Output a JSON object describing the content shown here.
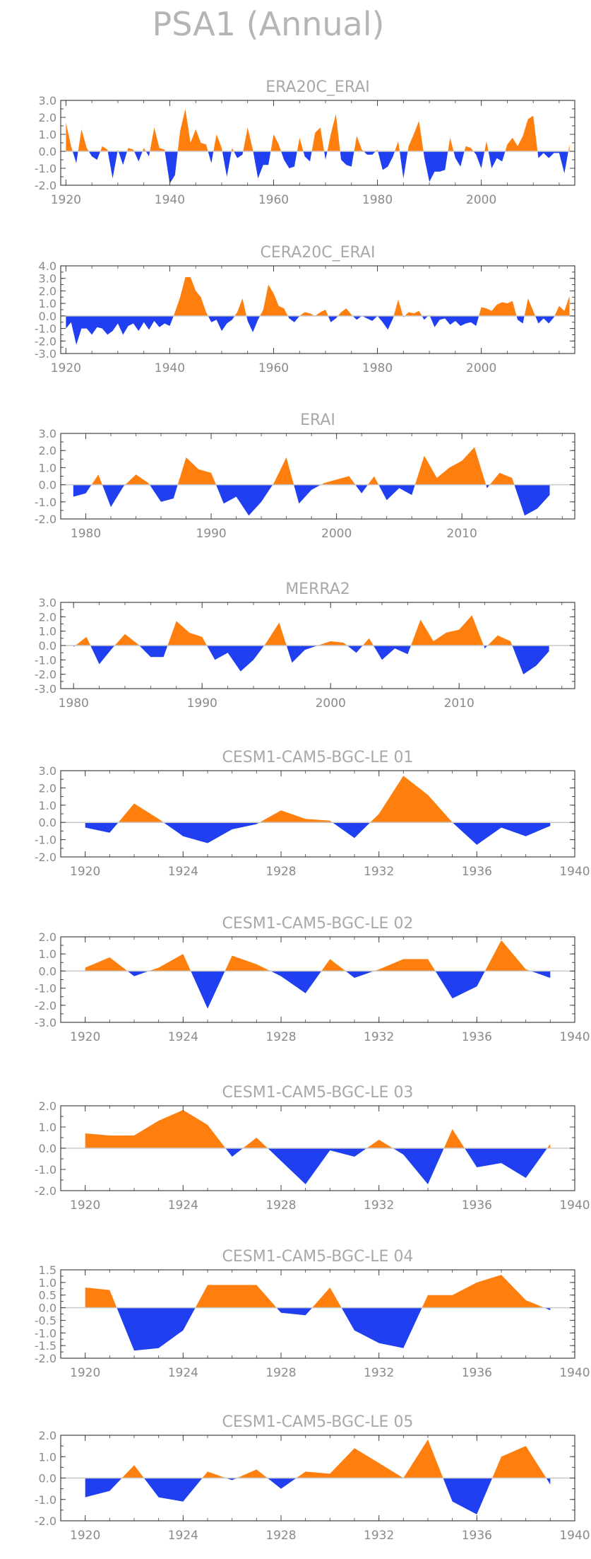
{
  "page_title": "PSA1 (Annual)",
  "colors": {
    "positive": "#ff7f0e",
    "negative": "#1f3ff0",
    "frame": "#444444",
    "zero_line": "#c8c8c8",
    "text": "#999999"
  },
  "chart_data": [
    {
      "type": "area",
      "title": "ERA20C_ERAI",
      "ylim": [
        -2.0,
        3.0
      ],
      "yticks": [
        "3.0",
        "2.0",
        "1.0",
        "0.0",
        "-1.0",
        "-2.0"
      ],
      "xlim": [
        1919,
        2018
      ],
      "xticks": [
        "1920",
        "1940",
        "1960",
        "1980",
        "2000"
      ],
      "x": [
        1920,
        1921,
        1922,
        1923,
        1924,
        1925,
        1926,
        1927,
        1928,
        1929,
        1930,
        1931,
        1932,
        1933,
        1934,
        1935,
        1936,
        1937,
        1938,
        1939,
        1940,
        1941,
        1942,
        1943,
        1944,
        1945,
        1946,
        1947,
        1948,
        1949,
        1950,
        1951,
        1952,
        1953,
        1954,
        1955,
        1956,
        1957,
        1958,
        1959,
        1960,
        1961,
        1962,
        1963,
        1964,
        1965,
        1966,
        1967,
        1968,
        1969,
        1970,
        1971,
        1972,
        1973,
        1974,
        1975,
        1976,
        1977,
        1978,
        1979,
        1980,
        1981,
        1982,
        1983,
        1984,
        1985,
        1986,
        1987,
        1988,
        1989,
        1990,
        1991,
        1992,
        1993,
        1994,
        1995,
        1996,
        1997,
        1998,
        1999,
        2000,
        2001,
        2002,
        2003,
        2004,
        2005,
        2006,
        2007,
        2008,
        2009,
        2010,
        2011,
        2012,
        2013,
        2014,
        2015,
        2016,
        2017
      ],
      "y": [
        1.7,
        0.3,
        -0.7,
        1.3,
        0.2,
        -0.3,
        -0.5,
        0.3,
        0.1,
        -1.6,
        0.1,
        -0.8,
        0.2,
        0.1,
        -0.6,
        0.2,
        -0.3,
        1.4,
        0.2,
        0.1,
        -1.9,
        -1.4,
        1.2,
        2.5,
        0.5,
        1.3,
        0.5,
        0.4,
        -0.7,
        1.0,
        0.2,
        -1.5,
        0.2,
        -0.4,
        -0.2,
        1.4,
        0.1,
        -1.6,
        -0.8,
        -0.8,
        1.0,
        0.4,
        -0.5,
        -1.0,
        -0.9,
        0.8,
        -0.3,
        -0.6,
        1.1,
        1.4,
        -0.5,
        1.0,
        2.2,
        -0.5,
        -0.8,
        -0.9,
        0.9,
        0.1,
        -0.2,
        -0.2,
        0.1,
        -1.1,
        -0.9,
        -0.3,
        0.6,
        -1.6,
        0.3,
        1.0,
        1.8,
        -0.3,
        -1.8,
        -1.2,
        -1.2,
        -1.1,
        0.8,
        -0.4,
        -0.9,
        0.3,
        0.2,
        -0.2,
        -1.0,
        0.6,
        -1.0,
        -0.4,
        -0.6,
        0.4,
        0.8,
        0.3,
        0.9,
        1.9,
        2.1,
        -0.4,
        -0.1,
        -0.4,
        -0.1,
        -0.1,
        -1.3,
        0.4
      ]
    },
    {
      "type": "area",
      "title": "CERA20C_ERAI",
      "ylim": [
        -3.0,
        4.0
      ],
      "yticks": [
        "4.0",
        "3.0",
        "2.0",
        "1.0",
        "0.0",
        "-1.0",
        "-2.0",
        "-3.0"
      ],
      "xlim": [
        1919,
        2018
      ],
      "xticks": [
        "1920",
        "1940",
        "1960",
        "1980",
        "2000"
      ],
      "x": [
        1920,
        1921,
        1922,
        1923,
        1924,
        1925,
        1926,
        1927,
        1928,
        1929,
        1930,
        1931,
        1932,
        1933,
        1934,
        1935,
        1936,
        1937,
        1938,
        1939,
        1940,
        1941,
        1942,
        1943,
        1944,
        1945,
        1946,
        1947,
        1948,
        1949,
        1950,
        1951,
        1952,
        1953,
        1954,
        1955,
        1956,
        1957,
        1958,
        1959,
        1960,
        1961,
        1962,
        1963,
        1964,
        1965,
        1966,
        1967,
        1968,
        1969,
        1970,
        1971,
        1972,
        1973,
        1974,
        1975,
        1976,
        1977,
        1978,
        1979,
        1980,
        1981,
        1982,
        1983,
        1984,
        1985,
        1986,
        1987,
        1988,
        1989,
        1990,
        1991,
        1992,
        1993,
        1994,
        1995,
        1996,
        1997,
        1998,
        1999,
        2000,
        2001,
        2002,
        2003,
        2004,
        2005,
        2006,
        2007,
        2008,
        2009,
        2010,
        2011,
        2012,
        2013,
        2014,
        2015,
        2016,
        2017
      ],
      "y": [
        -1.0,
        -0.5,
        -2.3,
        -1.0,
        -1.0,
        -1.5,
        -0.9,
        -1.0,
        -1.5,
        -1.2,
        -0.6,
        -1.5,
        -0.8,
        -0.6,
        -1.2,
        -0.5,
        -1.1,
        -0.4,
        -0.9,
        -0.6,
        -0.8,
        0.3,
        1.5,
        3.1,
        3.1,
        2.0,
        1.5,
        0.3,
        -0.5,
        -0.3,
        -1.2,
        -0.6,
        -0.3,
        0.3,
        1.4,
        -0.4,
        -1.3,
        -0.3,
        0.5,
        2.5,
        1.8,
        0.8,
        0.6,
        -0.2,
        -0.5,
        0.0,
        0.3,
        0.2,
        0.0,
        0.3,
        0.5,
        -0.5,
        -0.2,
        0.3,
        0.6,
        0.1,
        -0.3,
        0.0,
        -0.2,
        -0.4,
        0.0,
        -0.5,
        -1.1,
        -0.2,
        1.3,
        -0.1,
        0.3,
        0.2,
        0.4,
        -0.3,
        0.1,
        -0.9,
        -0.3,
        -0.2,
        -0.7,
        -0.4,
        -0.8,
        -0.6,
        -0.5,
        -0.8,
        0.7,
        0.6,
        0.4,
        0.9,
        1.1,
        1.0,
        1.2,
        -0.3,
        -0.6,
        1.4,
        0.4,
        -0.6,
        -0.2,
        -0.6,
        -0.1,
        0.8,
        0.4,
        1.6
      ]
    },
    {
      "type": "area",
      "title": "ERAI",
      "ylim": [
        -2.0,
        3.0
      ],
      "yticks": [
        "3.0",
        "2.0",
        "1.0",
        "0.0",
        "-1.0",
        "-2.0"
      ],
      "xlim": [
        1978,
        2019
      ],
      "xticks": [
        "1980",
        "1990",
        "2000",
        "2010"
      ],
      "x": [
        1979,
        1980,
        1981,
        1982,
        1983,
        1984,
        1985,
        1986,
        1987,
        1988,
        1989,
        1990,
        1991,
        1992,
        1993,
        1994,
        1995,
        1996,
        1997,
        1998,
        1999,
        2000,
        2001,
        2002,
        2003,
        2004,
        2005,
        2006,
        2007,
        2008,
        2009,
        2010,
        2011,
        2012,
        2013,
        2014,
        2015,
        2016,
        2017
      ],
      "y": [
        -0.7,
        -0.5,
        0.6,
        -1.3,
        -0.1,
        0.6,
        0.1,
        -1.0,
        -0.8,
        1.6,
        0.9,
        0.7,
        -1.1,
        -0.7,
        -1.8,
        -1.0,
        0.1,
        1.6,
        -1.1,
        -0.3,
        0.1,
        0.3,
        0.5,
        -0.5,
        0.5,
        -0.9,
        -0.2,
        -0.6,
        1.7,
        0.4,
        1.0,
        1.4,
        2.2,
        -0.2,
        0.7,
        0.4,
        -1.8,
        -1.4,
        -0.6
      ]
    },
    {
      "type": "area",
      "title": "MERRA2",
      "ylim": [
        -3.0,
        3.0
      ],
      "yticks": [
        "3.0",
        "2.0",
        "1.0",
        "0.0",
        "-1.0",
        "-2.0",
        "-3.0"
      ],
      "xlim": [
        1979,
        2019
      ],
      "xticks": [
        "1980",
        "1990",
        "2000",
        "2010"
      ],
      "x": [
        1980,
        1981,
        1982,
        1983,
        1984,
        1985,
        1986,
        1987,
        1988,
        1989,
        1990,
        1991,
        1992,
        1993,
        1994,
        1995,
        1996,
        1997,
        1998,
        1999,
        2000,
        2001,
        2002,
        2003,
        2004,
        2005,
        2006,
        2007,
        2008,
        2009,
        2010,
        2011,
        2012,
        2013,
        2014,
        2015,
        2016,
        2017
      ],
      "y": [
        -0.1,
        0.6,
        -1.3,
        -0.2,
        0.8,
        0.1,
        -0.8,
        -0.8,
        1.7,
        0.9,
        0.6,
        -1.0,
        -0.5,
        -1.8,
        -1.0,
        0.2,
        1.6,
        -1.2,
        -0.3,
        0.0,
        0.3,
        0.2,
        -0.5,
        0.5,
        -1.0,
        -0.2,
        -0.6,
        1.8,
        0.3,
        0.9,
        1.1,
        2.1,
        -0.2,
        0.7,
        0.3,
        -2.0,
        -1.4,
        -0.4
      ]
    },
    {
      "type": "area",
      "title": "CESM1-CAM5-BGC-LE 01",
      "ylim": [
        -2.0,
        3.0
      ],
      "yticks": [
        "3.0",
        "2.0",
        "1.0",
        "0.0",
        "-1.0",
        "-2.0"
      ],
      "xlim": [
        1919,
        1940
      ],
      "xticks": [
        "1920",
        "1924",
        "1928",
        "1932",
        "1936",
        "1940"
      ],
      "x": [
        1920,
        1921,
        1922,
        1923,
        1924,
        1925,
        1926,
        1927,
        1928,
        1929,
        1930,
        1931,
        1932,
        1933,
        1934,
        1935,
        1936,
        1937,
        1938,
        1939
      ],
      "y": [
        -0.3,
        -0.6,
        1.1,
        0.2,
        -0.8,
        -1.2,
        -0.4,
        -0.1,
        0.7,
        0.2,
        0.1,
        -0.9,
        0.5,
        2.7,
        1.6,
        0.0,
        -1.3,
        -0.3,
        -0.8,
        -0.2
      ]
    },
    {
      "type": "area",
      "title": "CESM1-CAM5-BGC-LE 02",
      "ylim": [
        -3.0,
        2.0
      ],
      "yticks": [
        "2.0",
        "1.0",
        "0.0",
        "-1.0",
        "-2.0",
        "-3.0"
      ],
      "xlim": [
        1919,
        1940
      ],
      "xticks": [
        "1920",
        "1924",
        "1928",
        "1932",
        "1936",
        "1940"
      ],
      "x": [
        1920,
        1921,
        1922,
        1923,
        1924,
        1925,
        1926,
        1927,
        1928,
        1929,
        1930,
        1931,
        1932,
        1933,
        1934,
        1935,
        1936,
        1937,
        1938,
        1939
      ],
      "y": [
        0.2,
        0.8,
        -0.3,
        0.2,
        1.0,
        -2.2,
        0.9,
        0.4,
        -0.3,
        -1.3,
        0.7,
        -0.4,
        0.1,
        0.7,
        0.7,
        -1.6,
        -0.9,
        1.8,
        0.1,
        -0.4
      ]
    },
    {
      "type": "area",
      "title": "CESM1-CAM5-BGC-LE 03",
      "ylim": [
        -2.0,
        2.0
      ],
      "yticks": [
        "2.0",
        "1.0",
        "0.0",
        "-1.0",
        "-2.0"
      ],
      "xlim": [
        1919,
        1940
      ],
      "xticks": [
        "1920",
        "1924",
        "1928",
        "1932",
        "1936",
        "1940"
      ],
      "x": [
        1920,
        1921,
        1922,
        1923,
        1924,
        1925,
        1926,
        1927,
        1928,
        1929,
        1930,
        1931,
        1932,
        1933,
        1934,
        1935,
        1936,
        1937,
        1938,
        1939
      ],
      "y": [
        0.7,
        0.6,
        0.6,
        1.3,
        1.8,
        1.1,
        -0.4,
        0.5,
        -0.6,
        -1.7,
        -0.1,
        -0.4,
        0.4,
        -0.3,
        -1.7,
        0.9,
        -0.9,
        -0.7,
        -1.4,
        0.2
      ]
    },
    {
      "type": "area",
      "title": "CESM1-CAM5-BGC-LE 04",
      "ylim": [
        -2.0,
        1.5
      ],
      "yticks": [
        "1.5",
        "1.0",
        "0.5",
        "0.0",
        "-0.5",
        "-1.0",
        "-1.5",
        "-2.0"
      ],
      "xlim": [
        1919,
        1940
      ],
      "xticks": [
        "1920",
        "1924",
        "1928",
        "1932",
        "1936",
        "1940"
      ],
      "x": [
        1920,
        1921,
        1922,
        1923,
        1924,
        1925,
        1926,
        1927,
        1928,
        1929,
        1930,
        1931,
        1932,
        1933,
        1934,
        1935,
        1936,
        1937,
        1938,
        1939
      ],
      "y": [
        0.8,
        0.7,
        -1.7,
        -1.6,
        -0.9,
        0.9,
        0.9,
        0.9,
        -0.2,
        -0.3,
        0.8,
        -0.9,
        -1.4,
        -1.6,
        0.5,
        0.5,
        1.0,
        1.3,
        0.3,
        -0.1
      ]
    },
    {
      "type": "area",
      "title": "CESM1-CAM5-BGC-LE 05",
      "ylim": [
        -2.0,
        2.0
      ],
      "yticks": [
        "2.0",
        "1.0",
        "0.0",
        "-1.0",
        "-2.0"
      ],
      "xlim": [
        1919,
        1940
      ],
      "xticks": [
        "1920",
        "1924",
        "1928",
        "1932",
        "1936",
        "1940"
      ],
      "x": [
        1920,
        1921,
        1922,
        1923,
        1924,
        1925,
        1926,
        1927,
        1928,
        1929,
        1930,
        1931,
        1932,
        1933,
        1934,
        1935,
        1936,
        1937,
        1938,
        1939
      ],
      "y": [
        -0.9,
        -0.6,
        0.6,
        -0.9,
        -1.1,
        0.3,
        -0.1,
        0.4,
        -0.5,
        0.3,
        0.2,
        1.4,
        0.7,
        0.0,
        1.8,
        -1.1,
        -1.7,
        1.0,
        1.5,
        -0.3
      ]
    }
  ]
}
